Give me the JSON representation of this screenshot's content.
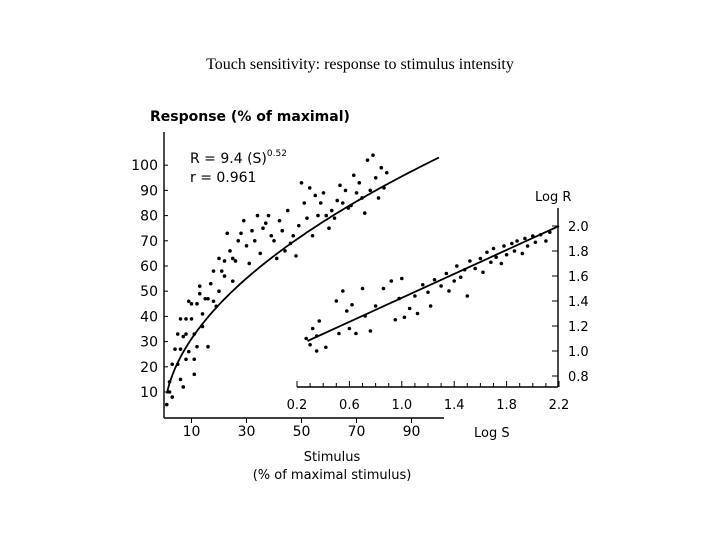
{
  "slide": {
    "title": "Touch sensitivity: response to stimulus intensity"
  },
  "chart_data": [
    {
      "type": "scatter",
      "panel": "linear",
      "ylabel": "Response (% of maximal)",
      "xlabel_line1": "Stimulus",
      "xlabel_line2": "(% of maximal stimulus)",
      "equation_prefix": "R = 9.4 (S)",
      "equation_exponent": "0.52",
      "correlation": "r = 0.961",
      "fit": {
        "coefficient": 9.4,
        "exponent": 0.52
      },
      "xlim": [
        0,
        100
      ],
      "ylim": [
        0,
        105
      ],
      "x_ticks": [
        "10",
        "30",
        "50",
        "70",
        "90"
      ],
      "y_ticks": [
        "10",
        "20",
        "30",
        "40",
        "50",
        "60",
        "70",
        "80",
        "90",
        "100"
      ],
      "points": [
        [
          1,
          5
        ],
        [
          2,
          10
        ],
        [
          2,
          14
        ],
        [
          3,
          21
        ],
        [
          3,
          8
        ],
        [
          4,
          27
        ],
        [
          5,
          21
        ],
        [
          5,
          33
        ],
        [
          6,
          27
        ],
        [
          6,
          15
        ],
        [
          6,
          39
        ],
        [
          7,
          32
        ],
        [
          7,
          12
        ],
        [
          8,
          33
        ],
        [
          8,
          23
        ],
        [
          8,
          39
        ],
        [
          9,
          26
        ],
        [
          9,
          46
        ],
        [
          10,
          39
        ],
        [
          10,
          45
        ],
        [
          11,
          23
        ],
        [
          11,
          33
        ],
        [
          11,
          17
        ],
        [
          12,
          28
        ],
        [
          12,
          45
        ],
        [
          13,
          52
        ],
        [
          13,
          49
        ],
        [
          14,
          36
        ],
        [
          14,
          41
        ],
        [
          15,
          47
        ],
        [
          16,
          47
        ],
        [
          16,
          28
        ],
        [
          17,
          53
        ],
        [
          18,
          46
        ],
        [
          18,
          58
        ],
        [
          19,
          44
        ],
        [
          20,
          50
        ],
        [
          20,
          63
        ],
        [
          21,
          58
        ],
        [
          22,
          62
        ],
        [
          22,
          56
        ],
        [
          23,
          73
        ],
        [
          24,
          66
        ],
        [
          25,
          54
        ],
        [
          25,
          63
        ],
        [
          26,
          62
        ],
        [
          27,
          70
        ],
        [
          28,
          73
        ],
        [
          29,
          78
        ],
        [
          30,
          68
        ],
        [
          31,
          61
        ],
        [
          32,
          74
        ],
        [
          33,
          70
        ],
        [
          34,
          80
        ],
        [
          35,
          65
        ],
        [
          36,
          75
        ],
        [
          37,
          77
        ],
        [
          38,
          80
        ],
        [
          39,
          72
        ],
        [
          40,
          70
        ],
        [
          41,
          63
        ],
        [
          42,
          78
        ],
        [
          43,
          74
        ],
        [
          44,
          66
        ],
        [
          45,
          82
        ],
        [
          46,
          69
        ],
        [
          47,
          72
        ],
        [
          48,
          64
        ],
        [
          49,
          76
        ],
        [
          50,
          93
        ],
        [
          51,
          85
        ],
        [
          52,
          79
        ],
        [
          53,
          91
        ],
        [
          54,
          72
        ],
        [
          55,
          88
        ],
        [
          56,
          80
        ],
        [
          57,
          85
        ],
        [
          58,
          89
        ],
        [
          59,
          80
        ],
        [
          60,
          75
        ],
        [
          61,
          82
        ],
        [
          62,
          79
        ],
        [
          63,
          86
        ],
        [
          64,
          92
        ],
        [
          65,
          85
        ],
        [
          66,
          90
        ],
        [
          67,
          83
        ],
        [
          68,
          84
        ],
        [
          69,
          96
        ],
        [
          70,
          89
        ],
        [
          71,
          93
        ],
        [
          72,
          87
        ],
        [
          73,
          81
        ],
        [
          74,
          102
        ],
        [
          75,
          90
        ],
        [
          76,
          104
        ],
        [
          77,
          95
        ],
        [
          78,
          87
        ],
        [
          79,
          99
        ],
        [
          80,
          91
        ],
        [
          81,
          97
        ]
      ]
    },
    {
      "type": "scatter",
      "panel": "log-log",
      "ylabel": "Log R",
      "xlabel": "Log S",
      "xlim": [
        0.2,
        2.2
      ],
      "ylim": [
        0.8,
        2.0
      ],
      "x_ticks": [
        "0.2",
        "0.6",
        "1.0",
        "1.4",
        "1.8",
        "2.2"
      ],
      "y_ticks": [
        "2.0",
        "1.8",
        "1.6",
        "1.4",
        "1.2",
        "1.0",
        "0.8"
      ],
      "fit_line": [
        [
          0.28,
          1.08
        ],
        [
          2.2,
          2.0
        ]
      ],
      "points": [
        [
          0.27,
          1.1
        ],
        [
          0.3,
          1.05
        ],
        [
          0.32,
          1.18
        ],
        [
          0.35,
          1.12
        ],
        [
          0.35,
          1.0
        ],
        [
          0.37,
          1.24
        ],
        [
          0.42,
          1.03
        ],
        [
          0.5,
          1.4
        ],
        [
          0.52,
          1.14
        ],
        [
          0.55,
          1.48
        ],
        [
          0.58,
          1.32
        ],
        [
          0.6,
          1.18
        ],
        [
          0.62,
          1.37
        ],
        [
          0.65,
          1.14
        ],
        [
          0.7,
          1.5
        ],
        [
          0.72,
          1.28
        ],
        [
          0.76,
          1.16
        ],
        [
          0.8,
          1.36
        ],
        [
          0.86,
          1.5
        ],
        [
          0.92,
          1.56
        ],
        [
          0.95,
          1.25
        ],
        [
          0.98,
          1.42
        ],
        [
          1.0,
          1.58
        ],
        [
          1.02,
          1.27
        ],
        [
          1.06,
          1.34
        ],
        [
          1.1,
          1.44
        ],
        [
          1.12,
          1.3
        ],
        [
          1.16,
          1.53
        ],
        [
          1.2,
          1.47
        ],
        [
          1.22,
          1.36
        ],
        [
          1.25,
          1.57
        ],
        [
          1.3,
          1.52
        ],
        [
          1.34,
          1.62
        ],
        [
          1.36,
          1.48
        ],
        [
          1.4,
          1.56
        ],
        [
          1.42,
          1.68
        ],
        [
          1.45,
          1.59
        ],
        [
          1.48,
          1.65
        ],
        [
          1.5,
          1.44
        ],
        [
          1.52,
          1.72
        ],
        [
          1.56,
          1.66
        ],
        [
          1.6,
          1.74
        ],
        [
          1.62,
          1.63
        ],
        [
          1.65,
          1.79
        ],
        [
          1.68,
          1.71
        ],
        [
          1.7,
          1.82
        ],
        [
          1.72,
          1.75
        ],
        [
          1.76,
          1.7
        ],
        [
          1.78,
          1.84
        ],
        [
          1.8,
          1.77
        ],
        [
          1.84,
          1.86
        ],
        [
          1.86,
          1.8
        ],
        [
          1.88,
          1.88
        ],
        [
          1.92,
          1.78
        ],
        [
          1.94,
          1.9
        ],
        [
          1.96,
          1.84
        ],
        [
          2.0,
          1.92
        ],
        [
          2.02,
          1.87
        ],
        [
          2.06,
          1.93
        ],
        [
          2.1,
          1.88
        ],
        [
          2.13,
          1.95
        ]
      ]
    }
  ],
  "colors": {
    "ink": "#000000",
    "background": "#ffffff"
  }
}
